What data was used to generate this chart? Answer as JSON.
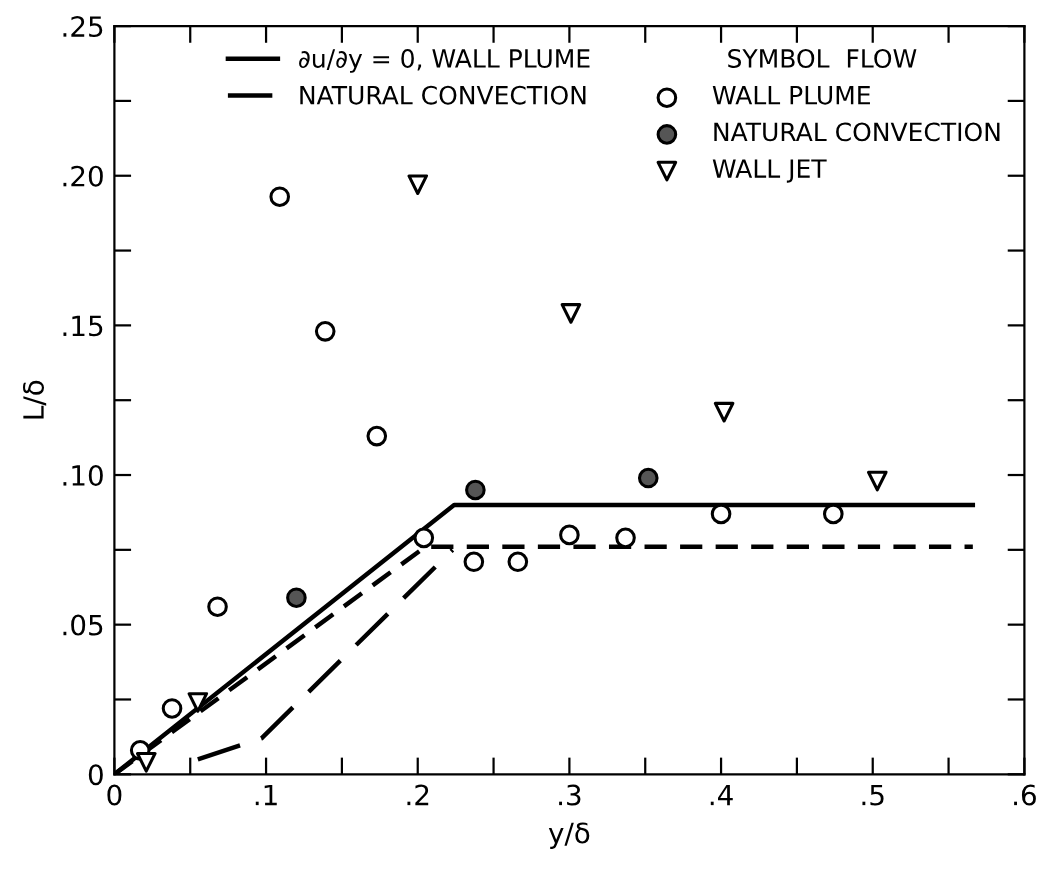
{
  "chart_data": {
    "type": "scatter",
    "xlabel": "y/δ",
    "ylabel": "L/δ",
    "legend_title": "SYMBOL  FLOW",
    "legend": "top right",
    "grid": false,
    "xlim": [
      0,
      0.6
    ],
    "ylim": [
      0,
      0.25
    ],
    "xticks": [
      {
        "value": 0,
        "label": "0"
      },
      {
        "value": 0.05,
        "label": null
      },
      {
        "value": 0.1,
        "label": ".1"
      },
      {
        "value": 0.15,
        "label": null
      },
      {
        "value": 0.2,
        "label": ".2"
      },
      {
        "value": 0.25,
        "label": null
      },
      {
        "value": 0.3,
        "label": ".3"
      },
      {
        "value": 0.35,
        "label": null
      },
      {
        "value": 0.4,
        "label": ".4"
      },
      {
        "value": 0.45,
        "label": null
      },
      {
        "value": 0.5,
        "label": ".5"
      },
      {
        "value": 0.55,
        "label": null
      },
      {
        "value": 0.6,
        "label": ".6"
      }
    ],
    "yticks": [
      {
        "value": 0,
        "label": "0"
      },
      {
        "value": 0.025,
        "label": null
      },
      {
        "value": 0.05,
        "label": ".05"
      },
      {
        "value": 0.075,
        "label": null
      },
      {
        "value": 0.1,
        "label": ".10"
      },
      {
        "value": 0.125,
        "label": null
      },
      {
        "value": 0.15,
        "label": ".15"
      },
      {
        "value": 0.175,
        "label": null
      },
      {
        "value": 0.2,
        "label": ".20"
      },
      {
        "value": 0.225,
        "label": null
      },
      {
        "value": 0.25,
        "label": ".25"
      }
    ],
    "series": [
      {
        "name": "WALL PLUME",
        "marker": "circle",
        "color": "#ffffff",
        "x": [
          0.109,
          0.139,
          0.173,
          0.017,
          0.038,
          0.068,
          0.204,
          0.237,
          0.266,
          0.3,
          0.337,
          0.4,
          0.474
        ],
        "values": [
          0.193,
          0.148,
          0.113,
          0.008,
          0.022,
          0.056,
          0.079,
          0.071,
          0.071,
          0.08,
          0.079,
          0.087,
          0.087
        ]
      },
      {
        "name": "NATURAL CONVECTION",
        "marker": "circle",
        "color": "#555555",
        "x": [
          0.12,
          0.238,
          0.352
        ],
        "values": [
          0.059,
          0.095,
          0.099
        ]
      },
      {
        "name": "WALL JET",
        "marker": "triangle",
        "color": "#ffffff",
        "x": [
          0.2,
          0.301,
          0.402,
          0.503,
          0.055,
          0.021
        ],
        "values": [
          0.197,
          0.154,
          0.121,
          0.098,
          0.024,
          0.004
        ]
      },
      {
        "name": "∂u/∂y = 0, WALL PLUME",
        "type": "line",
        "line_style": "solid",
        "color": "#000000",
        "x": [
          0,
          0.224,
          0.566
        ],
        "values": [
          0,
          0.09,
          0.09
        ]
      },
      {
        "type": "line",
        "line_style": "dashed",
        "color": "#000000",
        "x": [
          0,
          0.205,
          0.566
        ],
        "values": [
          0,
          0.076,
          0.076
        ]
      },
      {
        "name": "NATURAL CONVECTION",
        "type": "line",
        "line_style": "longdash",
        "color": "#000000",
        "x": [
          0.055,
          0.097,
          0.223
        ],
        "values": [
          0.005,
          0.012,
          0.075
        ]
      }
    ]
  }
}
